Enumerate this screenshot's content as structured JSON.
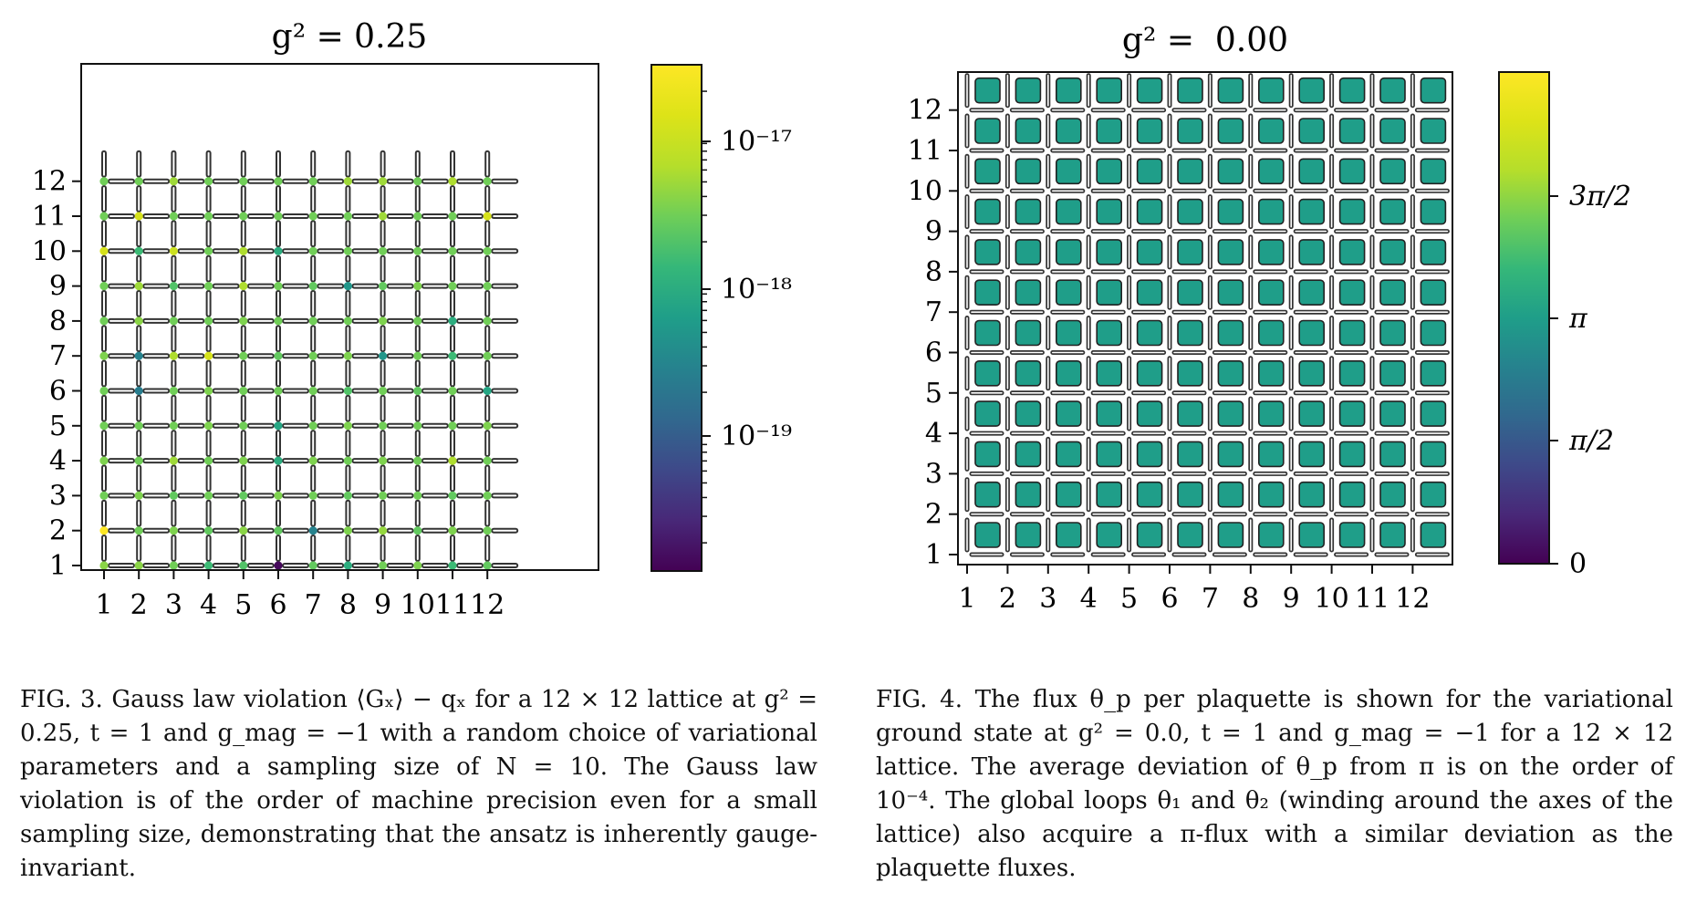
{
  "figure3": {
    "panel_title": "g² = 0.25",
    "caption": "FIG. 3.  Gauss law violation ⟨Gₓ⟩ − qₓ for a 12 × 12 lattice at g² = 0.25, t = 1 and g_mag = −1 with a random choice of variational parameters and a sampling size of N = 10. The Gauss law violation is of the order of machine precision even for a small sampling size, demonstrating that the ansatz is inherently gauge-invariant.",
    "colorbar": {
      "scale": "log",
      "colormap": "viridis",
      "tick_labels": [
        "10⁻¹⁷",
        "10⁻¹⁸",
        "10⁻¹⁹"
      ]
    }
  },
  "figure4": {
    "panel_title": "g² =  0.00",
    "caption": "FIG. 4. The flux θ_p per plaquette is shown for the variational ground state at g² = 0.0, t = 1 and g_mag = −1 for a 12 × 12 lattice. The average deviation of θ_p from π is on the order of 10⁻⁴. The global loops θ₁ and θ₂ (winding around the axes of the lattice) also acquire a π-flux with a similar deviation as the plaquette fluxes.",
    "colorbar": {
      "scale": "linear",
      "colormap": "viridis",
      "tick_labels": [
        "3π/2",
        "π",
        "π/2",
        "0"
      ]
    },
    "plaquette_color": "#3a8c89"
  },
  "chart_data": [
    {
      "type": "heatmap",
      "title": "g² = 0.25",
      "x": [
        1,
        2,
        3,
        4,
        5,
        6,
        7,
        8,
        9,
        10,
        11,
        12
      ],
      "y": [
        1,
        2,
        3,
        4,
        5,
        6,
        7,
        8,
        9,
        10,
        11,
        12
      ],
      "xlim": [
        1,
        12
      ],
      "ylim": [
        1,
        12
      ],
      "value_range": [
        1.3e-20,
        3e-17
      ],
      "colorbar_ticks": [
        1e-17,
        1e-18,
        1e-19
      ],
      "colorbar_tick_labels": [
        "10⁻¹⁷",
        "10⁻¹⁸",
        "10⁻¹⁹"
      ],
      "log_scale": true,
      "grid": false,
      "values": [
        [
          4e-18,
          4e-18,
          3e-18,
          1.5e-18,
          2e-18,
          1.5e-20,
          2.5e-18,
          1e-18,
          3e-18,
          3.5e-18,
          1.5e-18,
          2.5e-18
        ],
        [
          3e-17,
          3e-18,
          3.5e-18,
          2.5e-18,
          4e-18,
          2.5e-18,
          3e-19,
          3.5e-18,
          4.5e-18,
          2.5e-18,
          3.5e-18,
          3e-18
        ],
        [
          3e-18,
          3.5e-18,
          2.5e-18,
          3e-18,
          2.5e-18,
          3.5e-18,
          3e-18,
          2.5e-18,
          3e-18,
          3e-18,
          2.5e-18,
          3e-18
        ],
        [
          3.5e-18,
          3e-18,
          5e-18,
          3e-18,
          3.5e-18,
          1e-18,
          3.5e-18,
          3e-18,
          3.5e-18,
          3e-18,
          6e-18,
          3e-18
        ],
        [
          3e-18,
          3e-18,
          3e-18,
          3.5e-18,
          3e-18,
          8e-19,
          3e-18,
          3.5e-18,
          3e-18,
          3e-18,
          3e-18,
          3.5e-18
        ],
        [
          3e-18,
          2.5e-19,
          3e-18,
          3.5e-18,
          3e-18,
          3e-18,
          3e-18,
          2e-18,
          3e-18,
          2.5e-18,
          3e-18,
          8e-19
        ],
        [
          3.5e-18,
          3e-19,
          6e-18,
          1.2e-17,
          3e-18,
          2.5e-18,
          3e-18,
          3.5e-18,
          5e-19,
          3e-18,
          1.5e-18,
          3e-18
        ],
        [
          3e-18,
          4e-18,
          3e-18,
          3e-18,
          3.5e-18,
          3e-18,
          3e-18,
          3e-18,
          3.5e-18,
          3e-18,
          1e-18,
          3e-18
        ],
        [
          3e-18,
          5e-18,
          2e-18,
          3e-18,
          6e-18,
          3e-18,
          2.5e-18,
          5e-19,
          2.5e-18,
          3.5e-18,
          3e-18,
          3e-18
        ],
        [
          1.2e-17,
          1.5e-18,
          1e-17,
          3e-18,
          6e-18,
          1e-18,
          3e-18,
          3e-18,
          3e-18,
          3e-18,
          3e-18,
          3e-18
        ],
        [
          3e-18,
          1.2e-17,
          3e-18,
          3e-18,
          3e-18,
          3e-18,
          3e-18,
          3e-18,
          5e-18,
          3e-18,
          3e-18,
          1.2e-17
        ],
        [
          3e-18,
          3e-18,
          5e-18,
          3e-18,
          3e-18,
          3e-18,
          3e-18,
          5e-18,
          5e-18,
          3e-18,
          6e-18,
          3e-18
        ]
      ]
    },
    {
      "type": "heatmap",
      "title": "g² =  0.00",
      "x": [
        1,
        2,
        3,
        4,
        5,
        6,
        7,
        8,
        9,
        10,
        11,
        12
      ],
      "y": [
        1,
        2,
        3,
        4,
        5,
        6,
        7,
        8,
        9,
        10,
        11,
        12
      ],
      "xlim": [
        1,
        12
      ],
      "ylim": [
        1,
        12
      ],
      "value_range": [
        0,
        6.2832
      ],
      "colorbar_ticks": [
        4.7124,
        3.1416,
        1.5708,
        0
      ],
      "colorbar_tick_labels": [
        "3π/2",
        "π",
        "π/2",
        "0"
      ],
      "plaquette_value": 3.1416,
      "log_scale": false,
      "grid": false
    }
  ]
}
